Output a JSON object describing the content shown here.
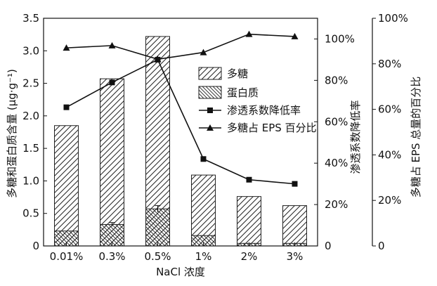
{
  "chart_data": {
    "type": "bar",
    "categories": [
      "0.01%",
      "0.3%",
      "0.5%",
      "1%",
      "2%",
      "3%"
    ],
    "xlabel": "NaCl 浓度",
    "y_left_label": "多糖和蛋白质含量 (μg·g⁻¹)",
    "y_right1_label": "渗透系数降低率",
    "y_right2_label": "多糖占 EPS 总量的百分比",
    "y_left_lim": [
      0,
      3.5
    ],
    "y_left_ticks": [
      "0",
      "0.5",
      "1.0",
      "1.5",
      "2.0",
      "2.5",
      "3.0",
      "3.5"
    ],
    "y_right1_lim": [
      0,
      110
    ],
    "y_right1_ticks": [
      "0",
      "20%",
      "40%",
      "60%",
      "80%",
      "100%"
    ],
    "y_right2_lim": [
      0,
      100
    ],
    "y_right2_ticks": [
      "0",
      "20%",
      "40%",
      "60%",
      "80%",
      "100%"
    ],
    "series": [
      {
        "name": "多糖",
        "kind": "bar",
        "axis": "left",
        "pattern": "hatch-right",
        "values": [
          1.85,
          2.57,
          3.22,
          1.09,
          0.76,
          0.62
        ]
      },
      {
        "name": "蛋白质",
        "kind": "bar",
        "axis": "left",
        "pattern": "hatch-left",
        "values": [
          0.23,
          0.33,
          0.57,
          0.16,
          0.04,
          0.04
        ],
        "errors": [
          0.0,
          0.03,
          0.05,
          0.0,
          0.0,
          0.0
        ]
      },
      {
        "name": "渗透系数降低率",
        "kind": "line",
        "marker": "square",
        "axis": "right1",
        "values": [
          67,
          79,
          90,
          42,
          32,
          30
        ]
      },
      {
        "name": "多糖占 EPS 百分比",
        "kind": "line",
        "marker": "triangle",
        "axis": "right2",
        "values": [
          87,
          88,
          82,
          85,
          93,
          92
        ]
      }
    ],
    "grid": false,
    "legend": "inside-upper-right"
  }
}
